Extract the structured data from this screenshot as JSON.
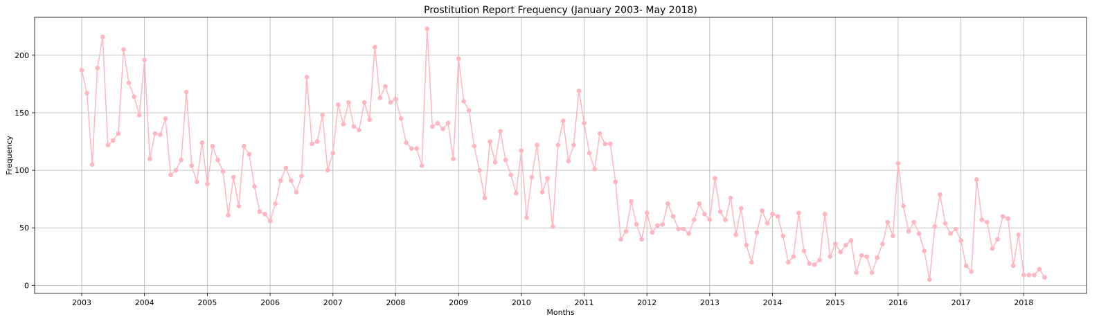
{
  "chart_data": {
    "type": "line",
    "title": "Prostitution Report Frequency (January 2003- May 2018)",
    "xlabel": "Months",
    "ylabel": "Frequency",
    "xlim": [
      2002.25,
      2019.0
    ],
    "ylim": [
      -7,
      233
    ],
    "xticks": [
      2003,
      2004,
      2005,
      2006,
      2007,
      2008,
      2009,
      2010,
      2011,
      2012,
      2013,
      2014,
      2015,
      2016,
      2017,
      2018
    ],
    "xtick_labels": [
      "2003",
      "2004",
      "2005",
      "2006",
      "2007",
      "2008",
      "2009",
      "2010",
      "2011",
      "2012",
      "2013",
      "2014",
      "2015",
      "2016",
      "2017",
      "2018"
    ],
    "yticks": [
      0,
      50,
      100,
      150,
      200
    ],
    "ytick_labels": [
      "0",
      "50",
      "100",
      "150",
      "200"
    ],
    "grid": true,
    "series": [
      {
        "name": "Frequency",
        "color": "#ffb6c1",
        "start": "2003-01",
        "values": [
          187,
          167,
          105,
          189,
          216,
          122,
          126,
          132,
          205,
          176,
          164,
          148,
          196,
          110,
          132,
          131,
          145,
          96,
          100,
          109,
          168,
          104,
          90,
          124,
          88,
          121,
          109,
          99,
          61,
          94,
          69,
          121,
          114,
          86,
          64,
          62,
          56,
          71,
          91,
          102,
          91,
          81,
          95,
          181,
          123,
          125,
          148,
          100,
          115,
          157,
          140,
          159,
          138,
          135,
          159,
          144,
          207,
          163,
          173,
          159,
          162,
          145,
          124,
          119,
          119,
          104,
          223,
          138,
          141,
          136,
          141,
          110,
          197,
          160,
          152,
          121,
          100,
          76,
          125,
          107,
          134,
          109,
          96,
          80,
          117,
          59,
          94,
          122,
          81,
          93,
          51,
          122,
          143,
          108,
          122,
          169,
          141,
          115,
          101,
          132,
          123,
          123,
          90,
          40,
          47,
          73,
          53,
          40,
          63,
          46,
          52,
          53,
          71,
          60,
          49,
          49,
          45,
          57,
          71,
          62,
          57,
          93,
          64,
          57,
          76,
          44,
          67,
          35,
          20,
          46,
          65,
          54,
          62,
          60,
          43,
          20,
          25,
          63,
          30,
          19,
          18,
          22,
          62,
          25,
          36,
          29,
          35,
          39,
          11,
          26,
          25,
          11,
          24,
          36,
          55,
          43,
          106,
          69,
          47,
          55,
          45,
          30,
          5,
          51,
          79,
          54,
          45,
          49,
          39,
          17,
          12,
          92,
          57,
          55,
          32,
          40,
          60,
          58,
          17,
          44,
          9,
          9,
          9,
          14,
          7
        ]
      }
    ]
  }
}
